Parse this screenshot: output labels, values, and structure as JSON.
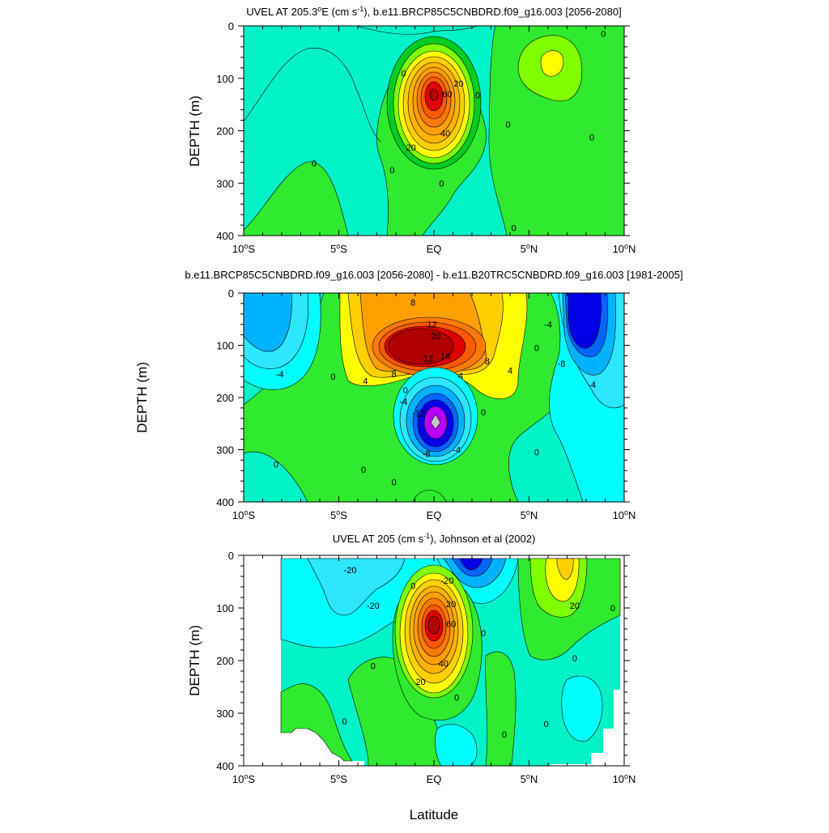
{
  "figure": {
    "x_axis_title": "Latitude",
    "colors": {
      "teal": "#00f2c6",
      "cyan": "#00ffff",
      "aqua": "#2de6ff",
      "sky": "#00b3ff",
      "blue": "#0066ff",
      "navy": "#0000e6",
      "magenta": "#b800ff",
      "green_lt": "#7fff00",
      "green": "#2fea2f",
      "green_md": "#00cc22",
      "yellow": "#ffff00",
      "orange_lt": "#ffd000",
      "orange": "#ffa000",
      "orange_dk": "#ff7a00",
      "red": "#ff3c00",
      "red_dk": "#e00000",
      "maroon": "#b00000",
      "grey": "#c8c8c8"
    }
  },
  "chart_data": [
    {
      "type": "contour",
      "title_main": "UVEL AT 205.3",
      "title_sup_deg": "o",
      "title_mid": "E (cm s",
      "title_sup_unit": "-1",
      "title_end": "), b.e11.BRCP85C5CNBDRD.f09_g16.003 [2056-2080]",
      "ylabel": "DEPTH (m)",
      "xlim": [
        -10,
        10
      ],
      "ylim": [
        400,
        0
      ],
      "x_ticks": [
        {
          "v": -10,
          "num": "10",
          "hem": "S"
        },
        {
          "v": -5,
          "num": "5",
          "hem": "S"
        },
        {
          "v": 0,
          "num": "EQ",
          "hem": ""
        },
        {
          "v": 5,
          "num": "5",
          "hem": "N"
        },
        {
          "v": 10,
          "num": "10",
          "hem": "N"
        }
      ],
      "y_ticks": [
        "0",
        "100",
        "200",
        "300",
        "400"
      ],
      "contour_labels": [
        {
          "lat": -1.6,
          "depth": 90,
          "text": "0"
        },
        {
          "lat": 1.3,
          "depth": 110,
          "text": "20"
        },
        {
          "lat": 0.7,
          "depth": 130,
          "text": "60"
        },
        {
          "lat": 0.6,
          "depth": 205,
          "text": "40"
        },
        {
          "lat": -1.2,
          "depth": 232,
          "text": "20"
        },
        {
          "lat": 2.3,
          "depth": 132,
          "text": "0"
        },
        {
          "lat": 3.9,
          "depth": 188,
          "text": "0"
        },
        {
          "lat": 8.3,
          "depth": 212,
          "text": "0"
        },
        {
          "lat": 8.9,
          "depth": 15,
          "text": "0"
        },
        {
          "lat": -6.3,
          "depth": 262,
          "text": "0"
        },
        {
          "lat": -2.2,
          "depth": 275,
          "text": "0"
        },
        {
          "lat": 0.4,
          "depth": 300,
          "text": "0"
        },
        {
          "lat": 4.2,
          "depth": 385,
          "text": "0"
        }
      ]
    },
    {
      "type": "contour",
      "title_main": "b.e11.BRCP85C5CNBDRD.f09_g16.003 [2056-2080] - b.e11.B20TRC5CNBDRD.f09_g16.003 [1981-2005]",
      "ylabel": "DEPTH (m)",
      "xlim": [
        -10,
        10
      ],
      "ylim": [
        400,
        0
      ],
      "x_ticks": [
        {
          "v": -10,
          "num": "10",
          "hem": "S"
        },
        {
          "v": -5,
          "num": "5",
          "hem": "S"
        },
        {
          "v": 0,
          "num": "EQ",
          "hem": ""
        },
        {
          "v": 5,
          "num": "5",
          "hem": "N"
        },
        {
          "v": 10,
          "num": "10",
          "hem": "N"
        }
      ],
      "y_ticks": [
        "0",
        "100",
        "200",
        "300",
        "400"
      ],
      "contour_labels": [
        {
          "lat": -1.1,
          "depth": 18,
          "text": "8"
        },
        {
          "lat": -0.1,
          "depth": 60,
          "text": "12"
        },
        {
          "lat": 0.1,
          "depth": 82,
          "text": "20"
        },
        {
          "lat": 0.6,
          "depth": 120,
          "text": "16"
        },
        {
          "lat": -0.3,
          "depth": 125,
          "text": "12"
        },
        {
          "lat": -2.1,
          "depth": 155,
          "text": "8"
        },
        {
          "lat": 1.4,
          "depth": 158,
          "text": "4"
        },
        {
          "lat": 2.8,
          "depth": 130,
          "text": "8"
        },
        {
          "lat": 4.0,
          "depth": 148,
          "text": "4"
        },
        {
          "lat": -3.6,
          "depth": 168,
          "text": "4"
        },
        {
          "lat": -5.3,
          "depth": 160,
          "text": "0"
        },
        {
          "lat": -8.1,
          "depth": 155,
          "text": "-4"
        },
        {
          "lat": -1.5,
          "depth": 185,
          "text": "0"
        },
        {
          "lat": -1.6,
          "depth": 208,
          "text": "-4"
        },
        {
          "lat": -0.8,
          "depth": 230,
          "text": "-12"
        },
        {
          "lat": -0.4,
          "depth": 308,
          "text": "-8"
        },
        {
          "lat": 1.2,
          "depth": 300,
          "text": "-4"
        },
        {
          "lat": 2.6,
          "depth": 228,
          "text": "0"
        },
        {
          "lat": 5.4,
          "depth": 105,
          "text": "0"
        },
        {
          "lat": 6.0,
          "depth": 60,
          "text": "-4"
        },
        {
          "lat": 6.7,
          "depth": 135,
          "text": "-8"
        },
        {
          "lat": 8.3,
          "depth": 175,
          "text": "-4"
        },
        {
          "lat": 5.4,
          "depth": 305,
          "text": "0"
        },
        {
          "lat": -8.3,
          "depth": 328,
          "text": "0"
        },
        {
          "lat": -3.7,
          "depth": 338,
          "text": "0"
        },
        {
          "lat": -2.1,
          "depth": 362,
          "text": "0"
        }
      ]
    },
    {
      "type": "contour",
      "title_main": "UVEL AT 205 (cm s",
      "title_sup_unit": "-1",
      "title_end": "), Johnson et al (2002)",
      "ylabel": "DEPTH (m)",
      "xlim": [
        -10,
        10
      ],
      "ylim": [
        400,
        0
      ],
      "x_ticks": [
        {
          "v": -10,
          "num": "10",
          "hem": "S"
        },
        {
          "v": -5,
          "num": "5",
          "hem": "S"
        },
        {
          "v": 0,
          "num": "EQ",
          "hem": ""
        },
        {
          "v": 5,
          "num": "5",
          "hem": "N"
        },
        {
          "v": 10,
          "num": "10",
          "hem": "N"
        }
      ],
      "y_ticks": [
        "0",
        "100",
        "200",
        "300",
        "400"
      ],
      "contour_labels": [
        {
          "lat": -4.4,
          "depth": 28,
          "text": "-20"
        },
        {
          "lat": -3.2,
          "depth": 95,
          "text": "-20"
        },
        {
          "lat": -1.1,
          "depth": 58,
          "text": "0"
        },
        {
          "lat": 0.7,
          "depth": 48,
          "text": "-20"
        },
        {
          "lat": 0.9,
          "depth": 92,
          "text": "20"
        },
        {
          "lat": 0.9,
          "depth": 130,
          "text": "60"
        },
        {
          "lat": 0.5,
          "depth": 205,
          "text": "40"
        },
        {
          "lat": -0.7,
          "depth": 240,
          "text": "20"
        },
        {
          "lat": 2.6,
          "depth": 148,
          "text": "0"
        },
        {
          "lat": -3.2,
          "depth": 210,
          "text": "0"
        },
        {
          "lat": 1.2,
          "depth": 270,
          "text": "0"
        },
        {
          "lat": -4.7,
          "depth": 315,
          "text": "0"
        },
        {
          "lat": 7.4,
          "depth": 95,
          "text": "20"
        },
        {
          "lat": 9.4,
          "depth": 100,
          "text": "0"
        },
        {
          "lat": 7.4,
          "depth": 195,
          "text": "0"
        },
        {
          "lat": 3.7,
          "depth": 340,
          "text": "0"
        },
        {
          "lat": 5.9,
          "depth": 320,
          "text": "0"
        }
      ]
    }
  ]
}
